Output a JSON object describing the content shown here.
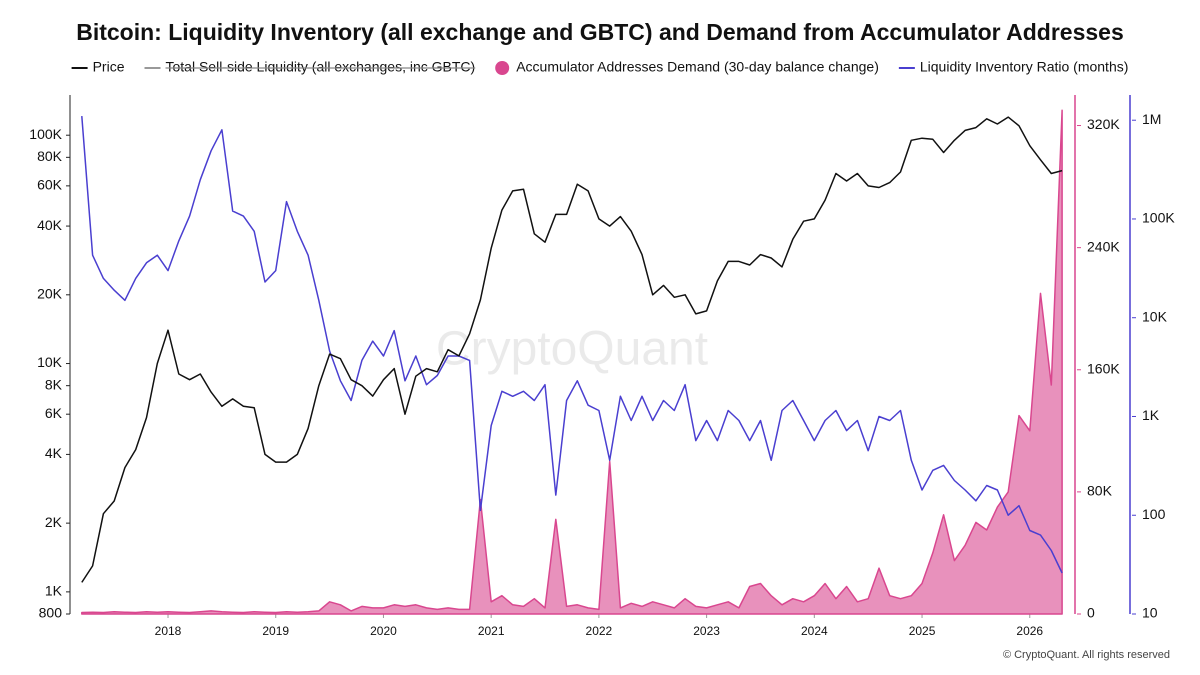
{
  "chart_data": {
    "type": "line",
    "title": "Bitcoin: Liquidity Inventory (all exchange and GBTC) and Demand from Accumulator Addresses",
    "watermark": "CryptoQuant",
    "footer": "© CryptoQuant. All rights reserved",
    "x": [
      2017.2,
      2017.3,
      2017.4,
      2017.5,
      2017.6,
      2017.7,
      2017.8,
      2017.9,
      2018.0,
      2018.1,
      2018.2,
      2018.3,
      2018.4,
      2018.5,
      2018.6,
      2018.7,
      2018.8,
      2018.9,
      2019.0,
      2019.1,
      2019.2,
      2019.3,
      2019.4,
      2019.5,
      2019.6,
      2019.7,
      2019.8,
      2019.9,
      2020.0,
      2020.1,
      2020.2,
      2020.3,
      2020.4,
      2020.5,
      2020.6,
      2020.7,
      2020.8,
      2020.9,
      2021.0,
      2021.1,
      2021.2,
      2021.3,
      2021.4,
      2021.5,
      2021.6,
      2021.7,
      2021.8,
      2021.9,
      2022.0,
      2022.1,
      2022.2,
      2022.3,
      2022.4,
      2022.5,
      2022.6,
      2022.7,
      2022.8,
      2022.9,
      2023.0,
      2023.1,
      2023.2,
      2023.3,
      2023.4,
      2023.5,
      2023.6,
      2023.7,
      2023.8,
      2023.9,
      2024.0,
      2024.1,
      2024.2,
      2024.3,
      2024.4,
      2024.5,
      2024.6,
      2024.7,
      2024.8,
      2024.9,
      2025.0,
      2025.1,
      2025.2,
      2025.3,
      2025.4,
      2025.5,
      2025.6,
      2025.7,
      2025.8,
      2025.9,
      2026.0,
      2026.1,
      2026.2,
      2026.3
    ],
    "xlim": [
      2017.09,
      2026.42
    ],
    "xticks": [
      2018,
      2019,
      2020,
      2021,
      2022,
      2023,
      2024,
      2025,
      2026
    ],
    "ylim": [
      800,
      150000
    ],
    "yscale": "log",
    "yticks": [
      800,
      {
        "value": 1000,
        "label": "1K"
      },
      {
        "value": 2000,
        "label": "2K"
      },
      {
        "value": 4000,
        "label": "4K"
      },
      {
        "value": 6000,
        "label": "6K"
      },
      {
        "value": 8000,
        "label": "8K"
      },
      {
        "value": 10000,
        "label": "10K"
      },
      {
        "value": 20000,
        "label": "20K"
      },
      {
        "value": 40000,
        "label": "40K"
      },
      {
        "value": 60000,
        "label": "60K"
      },
      {
        "value": 80000,
        "label": "80K"
      },
      {
        "value": 100000,
        "label": "100K"
      }
    ],
    "y2lim": [
      0,
      340000
    ],
    "y2color": "#d9478f",
    "y2ticks": [
      0,
      {
        "value": 80000,
        "label": "80K"
      },
      {
        "value": 160000,
        "label": "160K"
      },
      {
        "value": 240000,
        "label": "240K"
      },
      {
        "value": 320000,
        "label": "320K"
      }
    ],
    "y3lim": [
      10,
      1800000
    ],
    "y3scale": "log",
    "y3color": "#4a3fd0",
    "y3ticks": [
      10,
      100,
      {
        "value": 1000,
        "label": "1K"
      },
      {
        "value": 10000,
        "label": "10K"
      },
      {
        "value": 100000,
        "label": "100K"
      },
      {
        "value": 1000000,
        "label": "1M"
      }
    ],
    "series": [
      {
        "name": "Price",
        "color": "#111111",
        "axis": "y",
        "values": [
          1100,
          1300,
          2200,
          2500,
          3500,
          4200,
          5800,
          10000,
          14000,
          9000,
          8500,
          9000,
          7500,
          6500,
          7000,
          6500,
          6400,
          4000,
          3700,
          3700,
          4000,
          5200,
          8000,
          11000,
          10500,
          8500,
          8000,
          7200,
          8500,
          9500,
          6000,
          8800,
          9500,
          9200,
          11500,
          10800,
          13500,
          19000,
          32000,
          47000,
          57000,
          58000,
          37000,
          34000,
          45000,
          45000,
          61000,
          57000,
          43000,
          40000,
          44000,
          38000,
          30000,
          20000,
          22000,
          19500,
          20000,
          16500,
          17000,
          23000,
          28000,
          28000,
          27000,
          30000,
          29000,
          26500,
          35000,
          42000,
          43000,
          52000,
          68000,
          63000,
          68000,
          60000,
          59000,
          62000,
          69000,
          95000,
          97000,
          96000,
          84000,
          95000,
          105000,
          108000,
          118000,
          112000,
          120000,
          110000,
          90000,
          78000,
          68000,
          70000
        ]
      },
      {
        "name": "Total Sell-side Liquidity (all exchanges, inc GBTC)",
        "color": "#999999",
        "visible": false
      },
      {
        "name": "Accumulator Addresses Demand (30-day balance change)",
        "color": "#d9478f",
        "axis": "y2",
        "kind": "area",
        "values": [
          1000,
          1200,
          1000,
          1500,
          1200,
          1000,
          1500,
          1200,
          1500,
          1200,
          1000,
          1500,
          2000,
          1500,
          1200,
          1000,
          1500,
          1200,
          1000,
          1500,
          1200,
          1500,
          2000,
          8000,
          6000,
          2000,
          5000,
          4000,
          4000,
          6000,
          5000,
          6000,
          4000,
          3000,
          4000,
          3000,
          3000,
          75000,
          8000,
          12000,
          6000,
          5000,
          10000,
          4000,
          62000,
          5000,
          6000,
          4000,
          3000,
          100000,
          4000,
          7000,
          5000,
          8000,
          6000,
          4000,
          10000,
          5000,
          4000,
          6000,
          8000,
          4000,
          18000,
          20000,
          12000,
          6000,
          10000,
          8000,
          12000,
          20000,
          10000,
          18000,
          8000,
          10000,
          30000,
          12000,
          10000,
          12000,
          20000,
          40000,
          65000,
          35000,
          45000,
          60000,
          55000,
          70000,
          80000,
          130000,
          120000,
          210000,
          150000,
          330000
        ]
      },
      {
        "name": "Liquidity Inventory Ratio (months)",
        "color": "#4a3fd0",
        "axis": "y3",
        "values": [
          1100000,
          43000,
          25000,
          19000,
          15000,
          25000,
          36000,
          43000,
          30000,
          60000,
          107000,
          250000,
          490000,
          800000,
          120000,
          107000,
          75000,
          23000,
          30000,
          150000,
          75000,
          43000,
          15000,
          4600,
          2300,
          1450,
          3700,
          5800,
          4100,
          7400,
          2300,
          4100,
          2100,
          2600,
          4100,
          4100,
          3700,
          112,
          810,
          1800,
          1600,
          1800,
          1450,
          2100,
          160,
          1450,
          2300,
          1300,
          1150,
          360,
          1600,
          910,
          1600,
          910,
          1450,
          1150,
          2100,
          570,
          910,
          570,
          1150,
          910,
          570,
          910,
          360,
          1150,
          1450,
          910,
          570,
          910,
          1150,
          720,
          910,
          450,
          1000,
          910,
          1150,
          360,
          180,
          285,
          320,
          225,
          180,
          140,
          200,
          180,
          100,
          125,
          70,
          63,
          44,
          26
        ]
      }
    ]
  }
}
